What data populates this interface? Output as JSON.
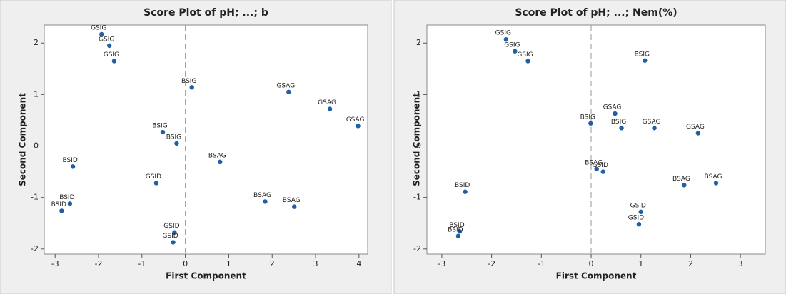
{
  "chart_data": [
    {
      "type": "scatter",
      "title": "Score Plot of pH; ...; b",
      "x_label": "First Component",
      "y_label": "Second Component",
      "color": "#1f5fa6",
      "x": [
        -1.93,
        -1.75,
        -1.64,
        0.15,
        2.38,
        3.33,
        3.98,
        -0.52,
        -0.2,
        -2.59,
        0.8,
        -0.67,
        -2.66,
        -2.85,
        1.84,
        2.51,
        -0.25,
        -0.28
      ],
      "values": [
        2.17,
        1.95,
        1.65,
        1.14,
        1.05,
        0.72,
        0.39,
        0.27,
        0.05,
        -0.4,
        -0.31,
        -0.72,
        -1.12,
        -1.26,
        -1.08,
        -1.18,
        -1.68,
        -1.87
      ],
      "point_labels": [
        "GSIG",
        "GSIG",
        "GSIG",
        "BSIG",
        "GSAG",
        "GSAG",
        "GSAG",
        "BSIG",
        "BSIG",
        "BSID",
        "BSAG",
        "GSID",
        "BSID",
        "BSID",
        "BSAG",
        "BSAG",
        "GSID",
        "GSID"
      ],
      "xlim": [
        -3.25,
        4.2
      ],
      "xticks": [
        -3,
        -2,
        -1,
        0,
        1,
        2,
        3,
        4
      ],
      "ylim": [
        -2.1,
        2.35
      ],
      "yticks": [
        -2,
        -1,
        0,
        1,
        2
      ],
      "reference_lines": {
        "x": 0,
        "y": 0
      }
    },
    {
      "type": "scatter",
      "title": "Score Plot of pH; ...; Nem(%)",
      "x_label": "First Component",
      "y_label": "Second Component",
      "color": "#1f5fa6",
      "x": [
        -1.71,
        -1.53,
        -1.27,
        1.08,
        -0.01,
        0.48,
        0.61,
        1.27,
        2.15,
        0.11,
        0.24,
        -2.53,
        1.87,
        2.51,
        1.0,
        0.96,
        -2.64,
        -2.67
      ],
      "values": [
        2.07,
        1.84,
        1.65,
        1.66,
        0.44,
        0.63,
        0.35,
        0.35,
        0.25,
        -0.45,
        -0.5,
        -0.89,
        -0.76,
        -0.72,
        -1.28,
        -1.52,
        -1.66,
        -1.75
      ],
      "point_labels": [
        "GSIG",
        "GSIG",
        "GSIG",
        "BSIG",
        "BSIG",
        "GSAG",
        "BSIG",
        "GSAG",
        "GSAG",
        "BSAG",
        "GSID",
        "BSID",
        "BSAG",
        "BSAG",
        "GSID",
        "GSID",
        "BSID",
        "BSID"
      ],
      "xlim": [
        -3.3,
        3.5
      ],
      "xticks": [
        -3,
        -2,
        -1,
        0,
        1,
        2,
        3
      ],
      "ylim": [
        -2.1,
        2.35
      ],
      "yticks": [
        -2,
        -1,
        0,
        1,
        2
      ],
      "reference_lines": {
        "x": 0,
        "y": 0
      }
    }
  ]
}
